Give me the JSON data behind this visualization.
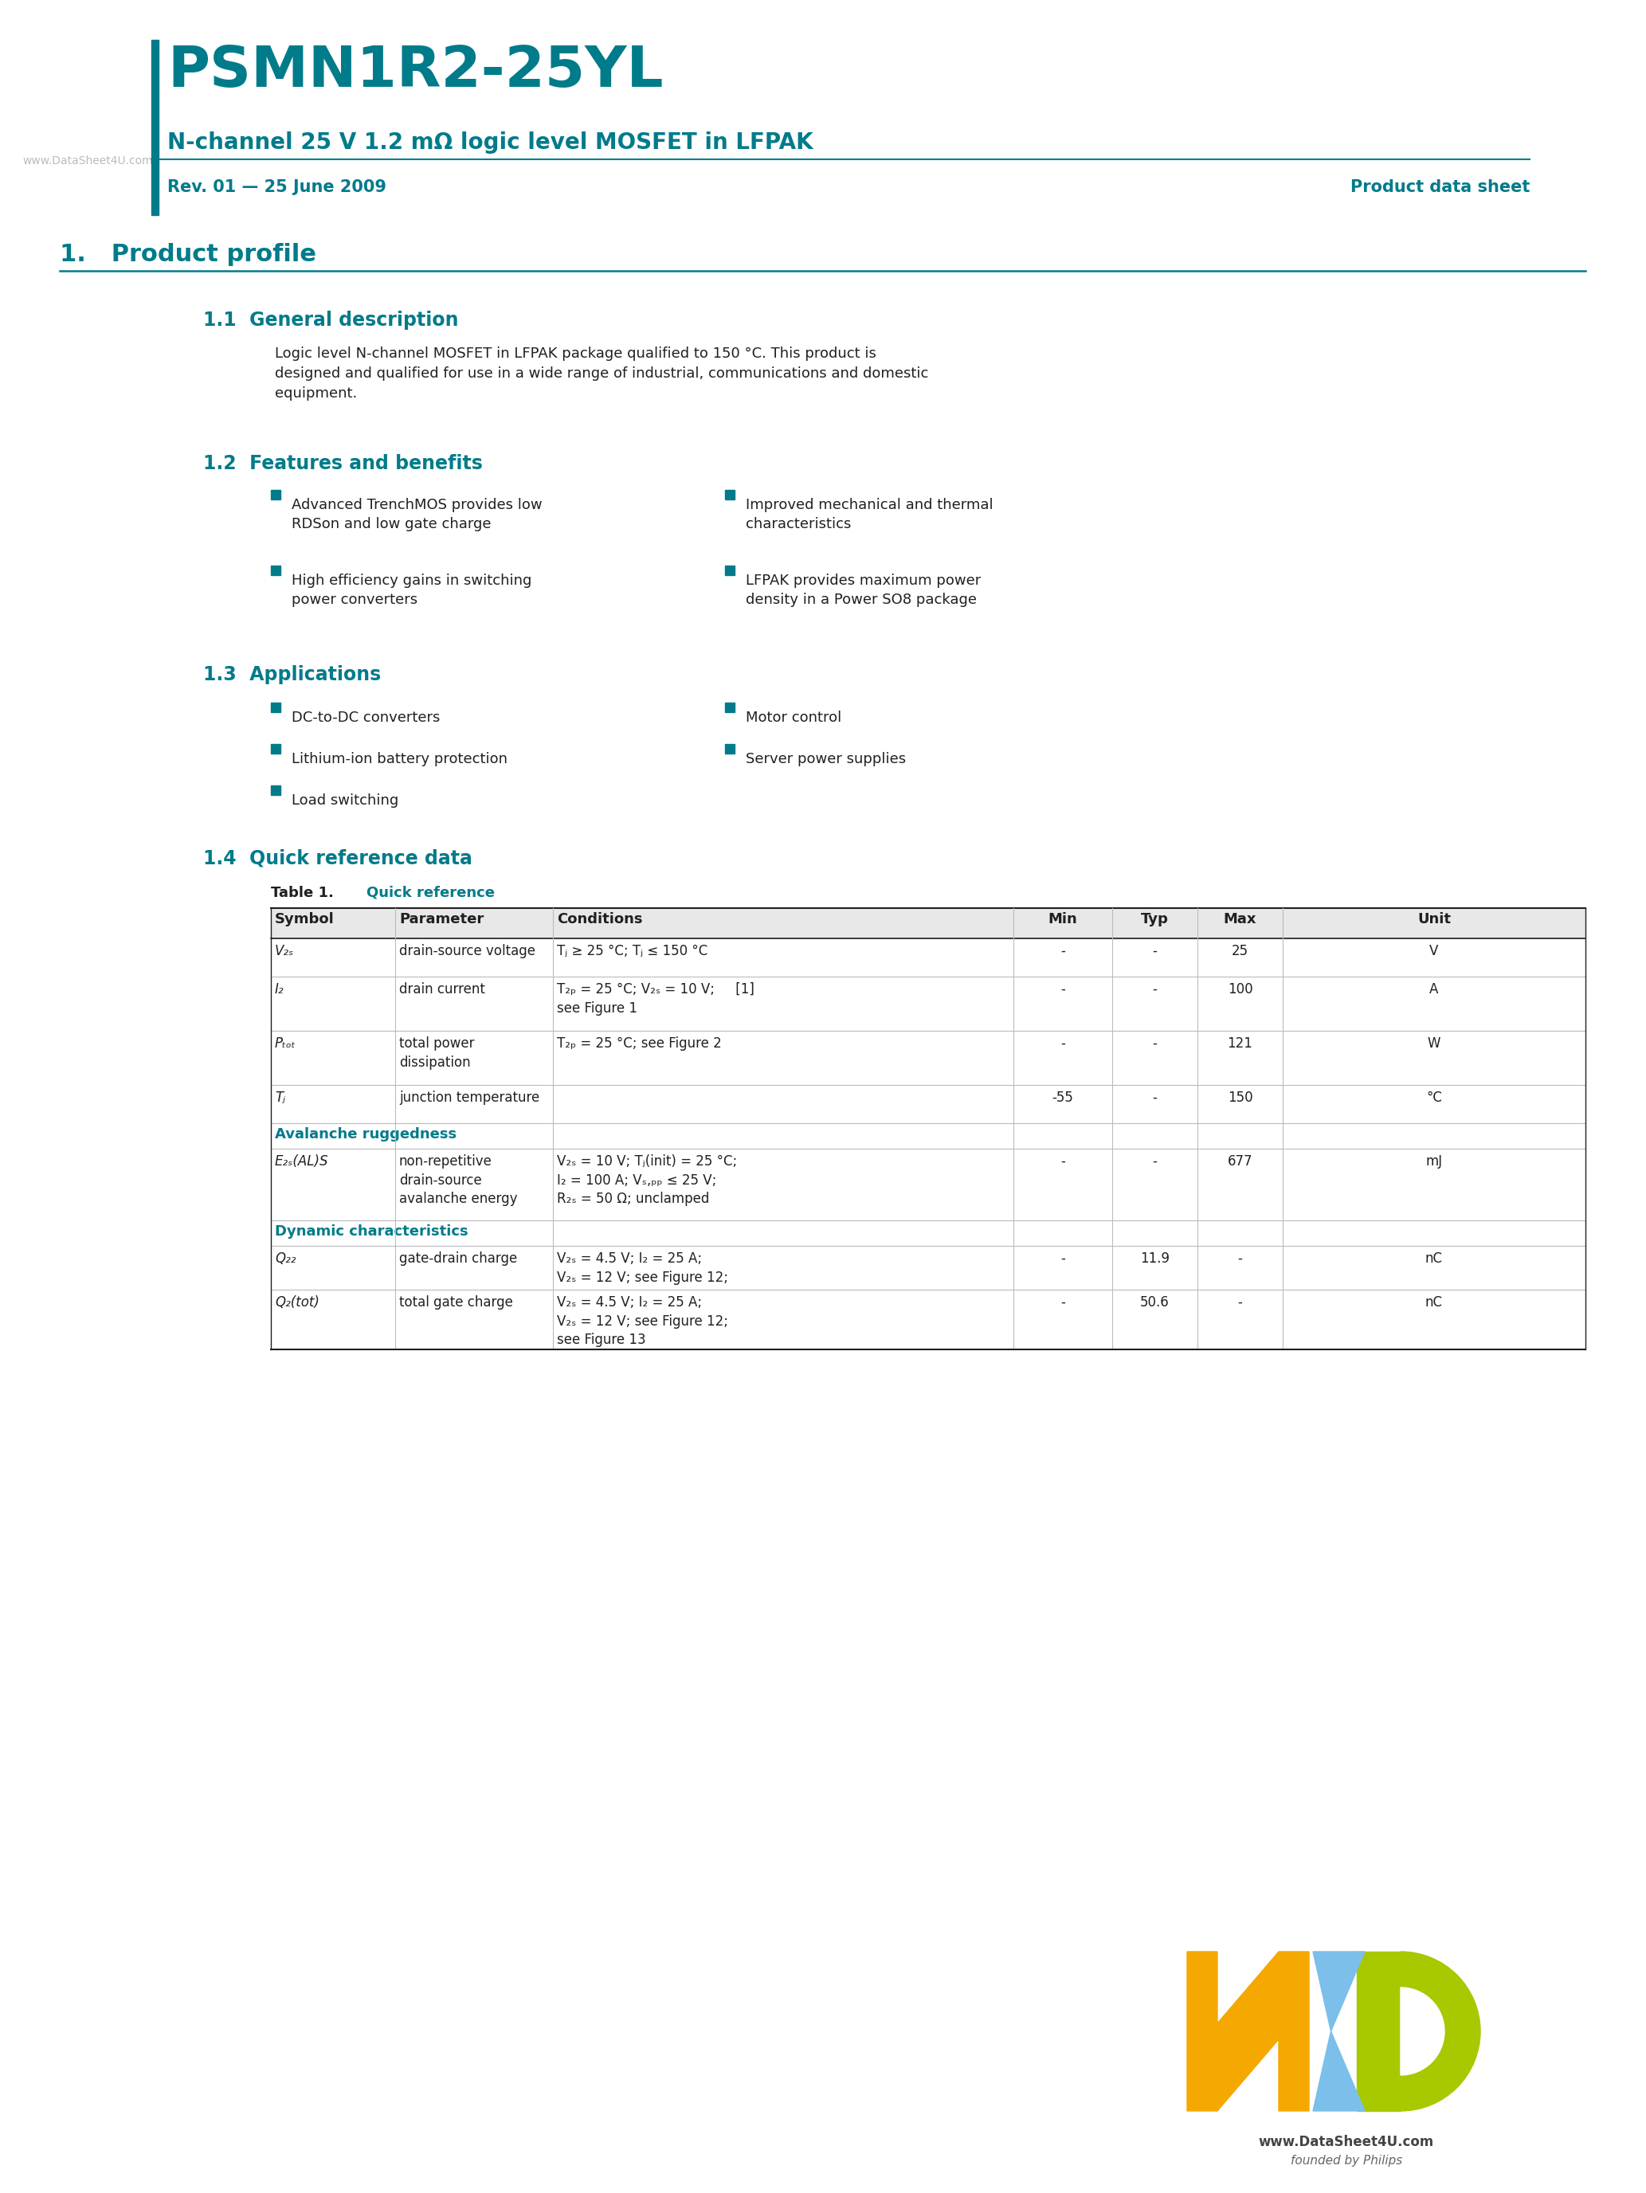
{
  "page_bg": "#ffffff",
  "teal": "#007B8A",
  "black": "#231F20",
  "gray": "#808080",
  "light_gray": "#CCCCCC",
  "table_header_bg": "#E8F4F5",
  "header_title": "PSMN1R2-25YL",
  "header_subtitle": "N-channel 25 V 1.2 mΩ logic level MOSFET in LFPAK",
  "header_rev": "Rev. 01 — 25 June 2009",
  "header_type": "Product data sheet",
  "watermark": "www.DataSheet4U.com",
  "section1_title": "1.   Product profile",
  "s11_title": "1.1  General description",
  "s11_body": "Logic level N-channel MOSFET in LFPAK package qualified to 150 °C. This product is\ndesigned and qualified for use in a wide range of industrial, communications and domestic\nequipment.",
  "s12_title": "1.2  Features and benefits",
  "s12_bullets_left": [
    "Advanced TrenchMOS provides low\nRDSon and low gate charge",
    "High efficiency gains in switching\npower converters"
  ],
  "s12_bullets_right": [
    "Improved mechanical and thermal\ncharacteristics",
    "LFPAK provides maximum power\ndensity in a Power SO8 package"
  ],
  "s13_title": "1.3  Applications",
  "s13_bullets_left": [
    "DC-to-DC converters",
    "Lithium-ion battery protection",
    "Load switching"
  ],
  "s13_bullets_right": [
    "Motor control",
    "Server power supplies"
  ],
  "s14_title": "1.4  Quick reference data",
  "footer_watermark": "www.DataSheet4U.com",
  "footer_note": "founded by Philips",
  "nxp_orange": "#F5A800",
  "nxp_blue": "#7BBFEA",
  "nxp_green": "#A8C800",
  "nxp_dark_green": "#6B8C00"
}
